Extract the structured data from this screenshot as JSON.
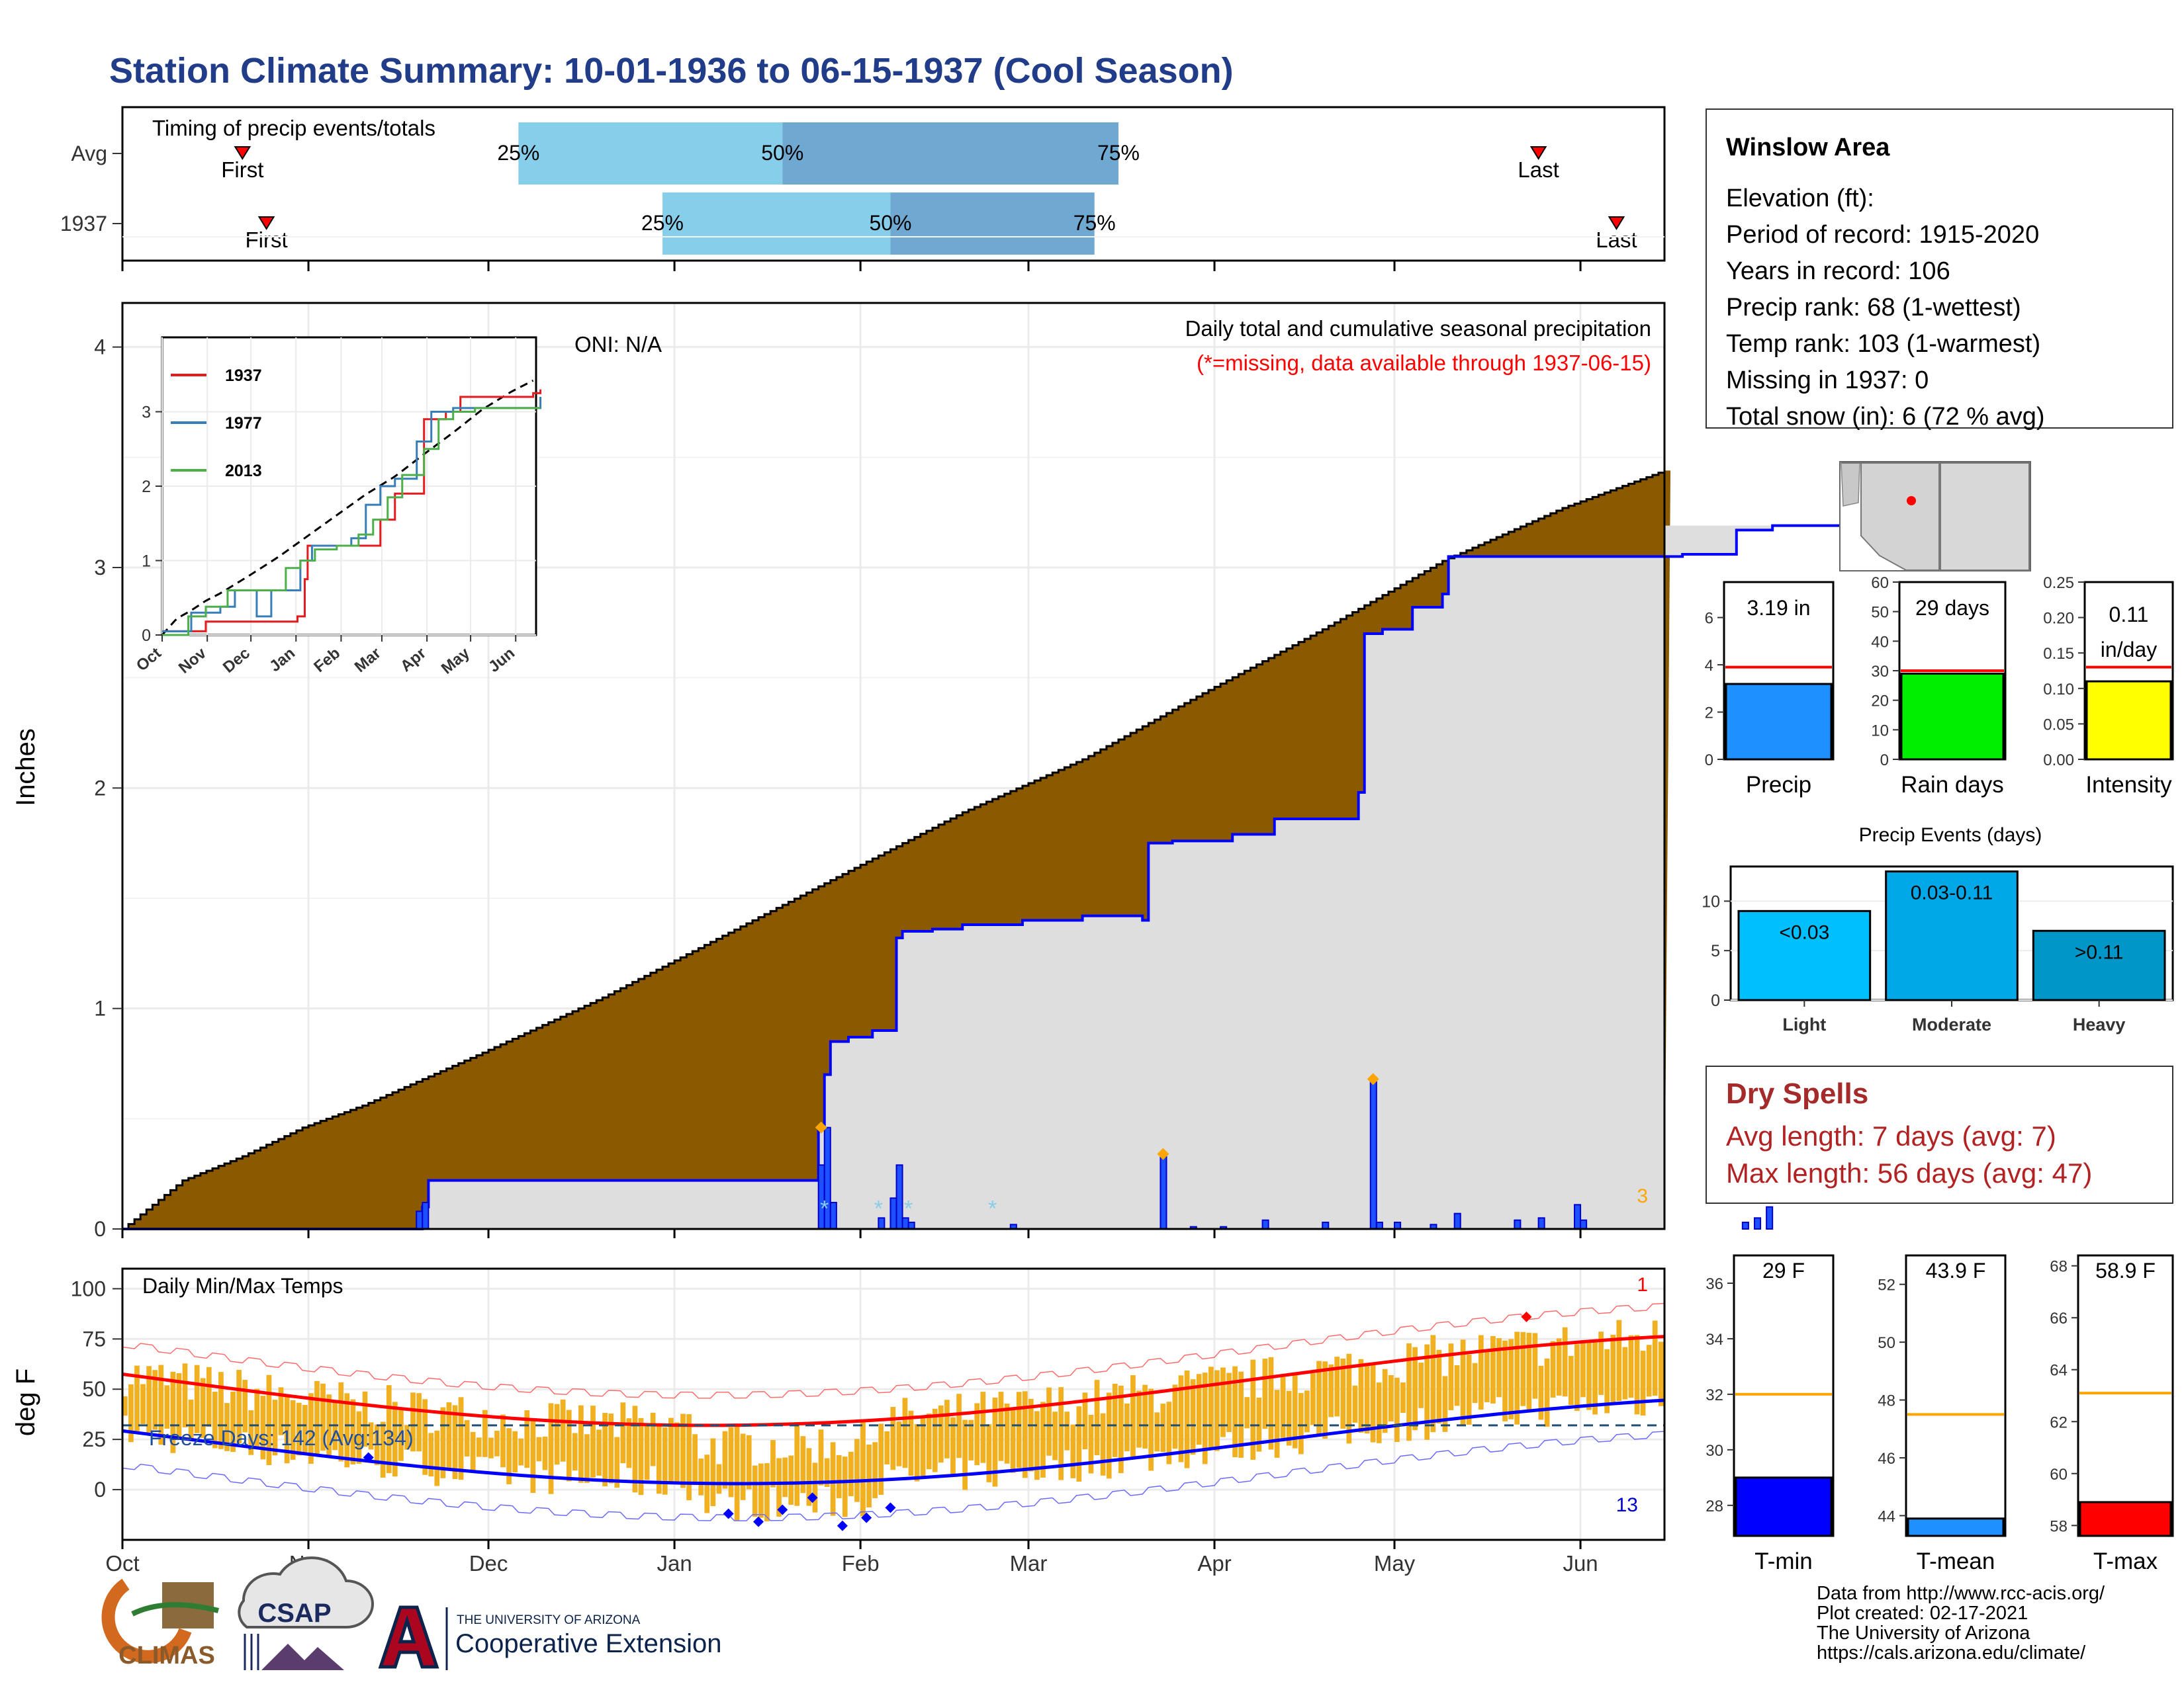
{
  "title": "Station Climate Summary: 10-01-1936 to 06-15-1937 (Cool Season)",
  "timing": {
    "label": "Timing of precip events/totals",
    "rows": [
      {
        "name": "Avg",
        "first": "First",
        "last": "Last",
        "first_date": "1936-10-21",
        "last_date": "1937-05-25",
        "q25": "1936-12-06",
        "q50": "1937-01-19",
        "q75": "1937-03-16"
      },
      {
        "name": "1937",
        "first": "First",
        "last": "Last",
        "first_date": "1936-10-25",
        "last_date": "1937-06-07",
        "q25": "1936-12-30",
        "q50": "1937-02-06",
        "q75": "1937-03-12"
      }
    ],
    "pct_labels": [
      "25%",
      "50%",
      "75%"
    ]
  },
  "chart_data": [
    {
      "type": "area",
      "name": "main-precip",
      "title": "Daily total and cumulative seasonal precipitation",
      "subtitle": "(*=missing, data available through 1937-06-15)",
      "oni": "ONI: N/A",
      "ylabel": "Inches",
      "ylim": [
        0,
        4.2
      ],
      "yticks": [
        0,
        1,
        2,
        3,
        4
      ],
      "corner_label": "3",
      "x_start": "1936-10-01",
      "x_end": "1937-06-15",
      "avg_cumulative": [
        [
          0,
          0
        ],
        [
          10,
          0.22
        ],
        [
          20,
          0.33
        ],
        [
          30,
          0.46
        ],
        [
          40,
          0.56
        ],
        [
          60,
          0.8
        ],
        [
          80,
          1.05
        ],
        [
          100,
          1.33
        ],
        [
          120,
          1.61
        ],
        [
          140,
          1.89
        ],
        [
          160,
          2.13
        ],
        [
          180,
          2.43
        ],
        [
          200,
          2.72
        ],
        [
          220,
          3.03
        ],
        [
          240,
          3.27
        ],
        [
          260,
          3.47
        ],
        [
          255,
          3.42
        ]
      ],
      "observed_cumulative": [
        [
          0,
          0
        ],
        [
          45,
          0
        ],
        [
          50,
          0.1
        ],
        [
          51,
          0.22
        ],
        [
          90,
          0.22
        ],
        [
          110,
          0.22
        ],
        [
          115,
          0.22
        ],
        [
          116,
          0.45
        ],
        [
          117,
          0.7
        ],
        [
          118,
          0.85
        ],
        [
          121,
          0.87
        ],
        [
          125,
          0.9
        ],
        [
          128,
          0.9
        ],
        [
          129,
          1.32
        ],
        [
          130,
          1.35
        ],
        [
          135,
          1.36
        ],
        [
          140,
          1.38
        ],
        [
          150,
          1.4
        ],
        [
          160,
          1.42
        ],
        [
          170,
          1.4
        ],
        [
          171,
          1.75
        ],
        [
          175,
          1.76
        ],
        [
          185,
          1.79
        ],
        [
          192,
          1.86
        ],
        [
          205,
          1.86
        ],
        [
          206,
          1.98
        ],
        [
          207,
          2.7
        ],
        [
          210,
          2.72
        ],
        [
          215,
          2.82
        ],
        [
          220,
          2.88
        ],
        [
          221,
          3.05
        ],
        [
          240,
          3.05
        ],
        [
          260,
          3.06
        ],
        [
          268,
          3.06
        ],
        [
          269,
          3.17
        ],
        [
          275,
          3.19
        ],
        [
          288,
          3.19
        ]
      ],
      "daily": [
        [
          49,
          0.08
        ],
        [
          50,
          0.12
        ],
        [
          116,
          0.29
        ],
        [
          117,
          0.46
        ],
        [
          118,
          0.12
        ],
        [
          126,
          0.05
        ],
        [
          128,
          0.14
        ],
        [
          129,
          0.29
        ],
        [
          130,
          0.05
        ],
        [
          131,
          0.03
        ],
        [
          148,
          0.02
        ],
        [
          173,
          0.34
        ],
        [
          178,
          0.01
        ],
        [
          183,
          0.01
        ],
        [
          190,
          0.04
        ],
        [
          200,
          0.03
        ],
        [
          208,
          0.68
        ],
        [
          209,
          0.03
        ],
        [
          212,
          0.03
        ],
        [
          218,
          0.02
        ],
        [
          222,
          0.07
        ],
        [
          232,
          0.04
        ],
        [
          236,
          0.05
        ],
        [
          242,
          0.11
        ],
        [
          243,
          0.04
        ],
        [
          270,
          0.03
        ],
        [
          272,
          0.05
        ],
        [
          274,
          0.1
        ]
      ],
      "diamonds": [
        [
          116,
          0.46
        ],
        [
          173,
          0.34
        ],
        [
          208,
          0.68
        ]
      ],
      "missing_marks": [
        [
          117,
          0.1
        ],
        [
          126,
          0.1
        ],
        [
          131,
          0.1
        ],
        [
          145,
          0.1
        ]
      ]
    },
    {
      "type": "line",
      "name": "inset-cumulative",
      "series": [
        {
          "name": "1937",
          "color": "#e41a1c"
        },
        {
          "name": "1977",
          "color": "#377eb8"
        },
        {
          "name": "2013",
          "color": "#4daf4a"
        }
      ],
      "ylim": [
        0,
        4.0
      ],
      "yticks": [
        0,
        1,
        2,
        3
      ],
      "xticks": [
        "Oct",
        "Nov",
        "Dec",
        "Jan",
        "Feb",
        "Mar",
        "Apr",
        "May",
        "Jun"
      ]
    },
    {
      "type": "line",
      "name": "temps",
      "title": "Daily Min/Max Temps",
      "ylabel": "deg F",
      "ylim": [
        -25,
        110
      ],
      "yticks": [
        0,
        25,
        50,
        75,
        100
      ],
      "freeze_label": "Freeze Days: 142 (Avg:134)",
      "freeze_line": 32,
      "corner_top": "1",
      "corner_bottom": "13",
      "x_labels": [
        "Oct",
        "Nov",
        "Dec",
        "Jan",
        "Feb",
        "Mar",
        "Apr",
        "May",
        "Jun"
      ]
    },
    {
      "type": "bar",
      "name": "summary-precip",
      "panels": [
        {
          "category": "Precip",
          "value": 3.19,
          "avg": 3.9,
          "label": "3.19 in",
          "unit": "",
          "ylim": [
            0,
            7.5
          ],
          "yticks": [
            "0",
            "2",
            "4",
            "6"
          ],
          "color": "#1e90ff"
        },
        {
          "category": "Rain days",
          "value": 29,
          "avg": 30,
          "label": "29 days",
          "unit": "",
          "ylim": [
            0,
            60
          ],
          "yticks": [
            "0",
            "10",
            "20",
            "30",
            "40",
            "50",
            "60"
          ],
          "color": "#00ee00"
        },
        {
          "category": "Intensity",
          "value": 0.11,
          "avg": 0.13,
          "label": "0.11",
          "unit": "in/day",
          "ylim": [
            0,
            0.25
          ],
          "yticks": [
            "0.00",
            "0.05",
            "0.10",
            "0.15",
            "0.20",
            "0.25"
          ],
          "color": "#ffff00"
        }
      ]
    },
    {
      "type": "bar",
      "name": "precip-events",
      "title": "Precip Events (days)",
      "categories": [
        "Light",
        "Moderate",
        "Heavy"
      ],
      "values": [
        9,
        13,
        7
      ],
      "labels": [
        "<0.03",
        "0.03-0.11",
        ">0.11"
      ],
      "ylim": [
        0,
        13.5
      ],
      "yticks": [
        "0",
        "5",
        "10"
      ]
    },
    {
      "type": "bar",
      "name": "summary-temps",
      "panels": [
        {
          "category": "T-min",
          "value": 29,
          "avg": 32,
          "label": "29 F",
          "ylim": [
            26.9,
            37
          ],
          "yticks": [
            "28",
            "30",
            "32",
            "34",
            "36"
          ],
          "color": "#0000ff"
        },
        {
          "category": "T-mean",
          "value": 43.9,
          "avg": 47.5,
          "label": "43.9 F",
          "ylim": [
            43.3,
            53
          ],
          "yticks": [
            "44",
            "46",
            "48",
            "50",
            "52"
          ],
          "color": "#1e90ff"
        },
        {
          "category": "T-max",
          "value": 58.9,
          "avg": 63.1,
          "label": "58.9 F",
          "ylim": [
            57.6,
            68.4
          ],
          "yticks": [
            "58",
            "60",
            "62",
            "64",
            "66",
            "68"
          ],
          "color": "#ff0000"
        }
      ]
    }
  ],
  "station": {
    "name": "Winslow Area",
    "lines": [
      "Elevation (ft):",
      "Period of record: 1915-2020",
      "Years in record: 106",
      "Precip rank: 68 (1-wettest)",
      "Temp rank: 103 (1-warmest)",
      "Missing in 1937: 0",
      "Total snow (in): 6 (72 % avg)"
    ]
  },
  "dry_spells": {
    "title": "Dry Spells",
    "avg": "Avg length: 7 days (avg: 7)",
    "max": "Max length: 56 days (avg: 47)"
  },
  "credits": [
    "Data from http://www.rcc-acis.org/",
    "Plot created: 02-17-2021",
    "The University of Arizona",
    "https://cals.arizona.edu/climate/"
  ],
  "logos": {
    "climas": "CLIMAS",
    "csap": "CSAP",
    "ua_small": "THE UNIVERSITY OF ARIZONA",
    "ua_big": "Cooperative Extension"
  },
  "colors": {
    "title": "#213d8a",
    "avg_fill": "#8b5a00",
    "obs_fill": "#dedede",
    "obs_line": "#0000ff",
    "timing_light": "#87ceeb",
    "timing_dark": "#6fa8d0",
    "temp_bar": "#f0b020",
    "dry_title": "#a52a2a",
    "dry_text": "#b22222"
  }
}
